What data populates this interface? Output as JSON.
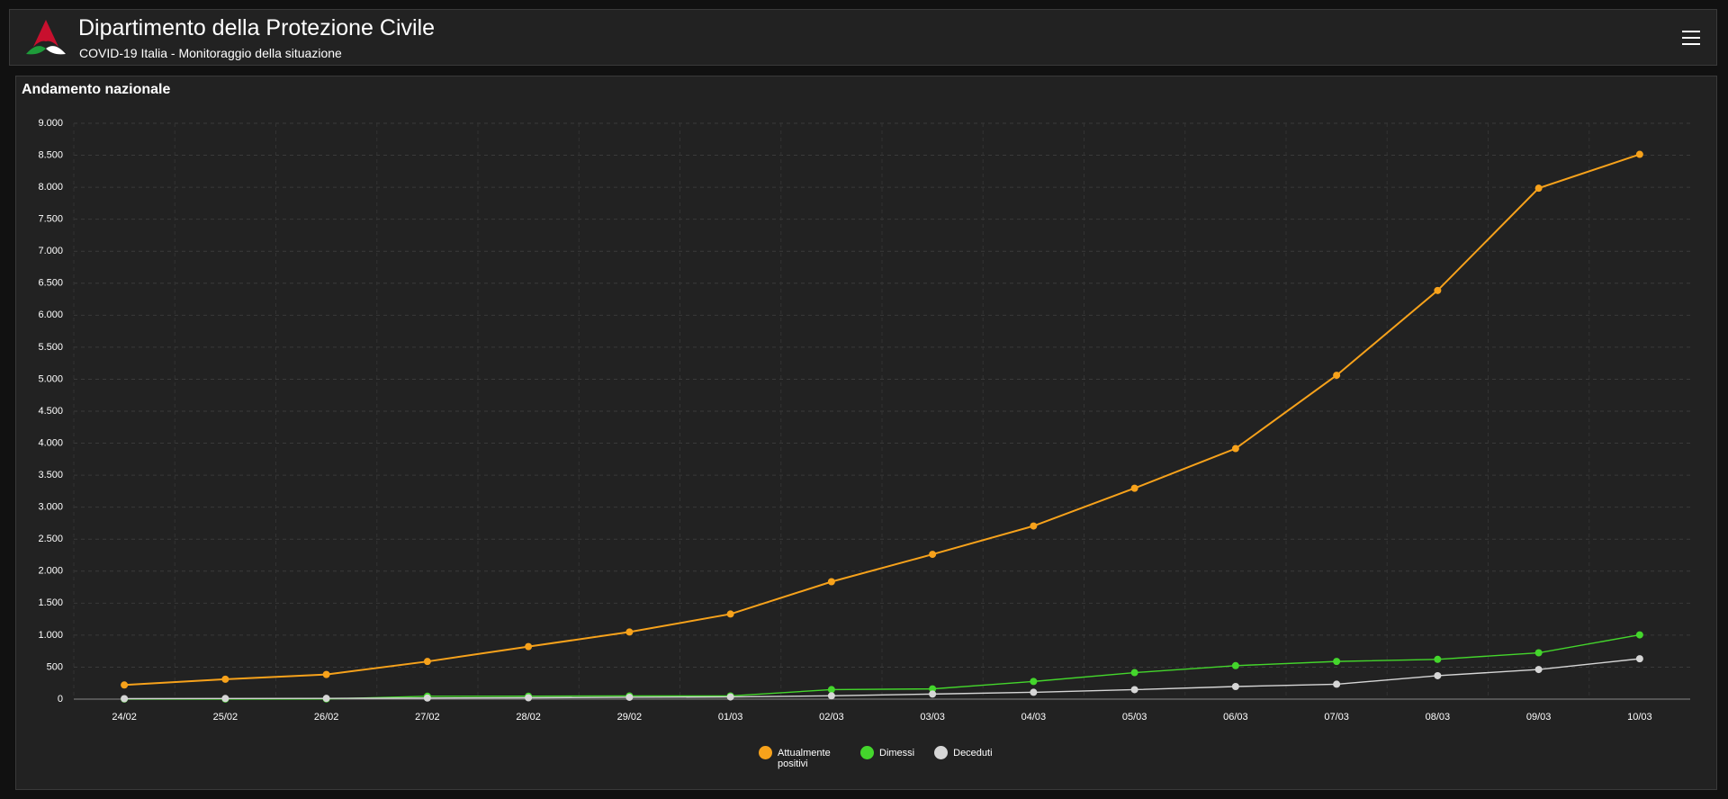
{
  "header": {
    "title": "Dipartimento della Protezione Civile",
    "subtitle": "COVID-19 Italia - Monitoraggio della situazione"
  },
  "chart_data": {
    "type": "line",
    "title": "Andamento nazionale",
    "categories": [
      "24/02",
      "25/02",
      "26/02",
      "27/02",
      "28/02",
      "29/02",
      "01/03",
      "02/03",
      "03/03",
      "04/03",
      "05/03",
      "06/03",
      "07/03",
      "08/03",
      "09/03",
      "10/03"
    ],
    "series": [
      {
        "name": "Attualmente positivi",
        "color": "#f7a21b",
        "values": [
          221,
          311,
          385,
          588,
          821,
          1049,
          1330,
          1835,
          2263,
          2706,
          3296,
          3916,
          5061,
          6387,
          7985,
          8514
        ]
      },
      {
        "name": "Dimessi",
        "color": "#44d62c",
        "values": [
          1,
          1,
          3,
          45,
          46,
          50,
          50,
          149,
          160,
          276,
          414,
          523,
          589,
          622,
          724,
          1004
        ]
      },
      {
        "name": "Deceduti",
        "color": "#d6d6d6",
        "values": [
          7,
          10,
          12,
          17,
          21,
          29,
          34,
          52,
          79,
          107,
          148,
          197,
          233,
          366,
          463,
          631
        ]
      }
    ],
    "ylim": [
      0,
      9000
    ],
    "yticks": [
      0,
      500,
      {
        "value": 1000,
        "label": "1.000"
      },
      {
        "value": 1500,
        "label": "1.500"
      },
      {
        "value": 2000,
        "label": "2.000"
      },
      {
        "value": 2500,
        "label": "2.500"
      },
      {
        "value": 3000,
        "label": "3.000"
      },
      {
        "value": 3500,
        "label": "3.500"
      },
      {
        "value": 4000,
        "label": "4.000"
      },
      {
        "value": 4500,
        "label": "4.500"
      },
      {
        "value": 5000,
        "label": "5.000"
      },
      {
        "value": 5500,
        "label": "5.500"
      },
      {
        "value": 6000,
        "label": "6.000"
      },
      {
        "value": 6500,
        "label": "6.500"
      },
      {
        "value": 7000,
        "label": "7.000"
      },
      {
        "value": 7500,
        "label": "7.500"
      },
      {
        "value": 8000,
        "label": "8.000"
      },
      {
        "value": 8500,
        "label": "8.500"
      },
      {
        "value": 9000,
        "label": "9.000"
      }
    ],
    "grid": true,
    "legend": "bottom"
  }
}
